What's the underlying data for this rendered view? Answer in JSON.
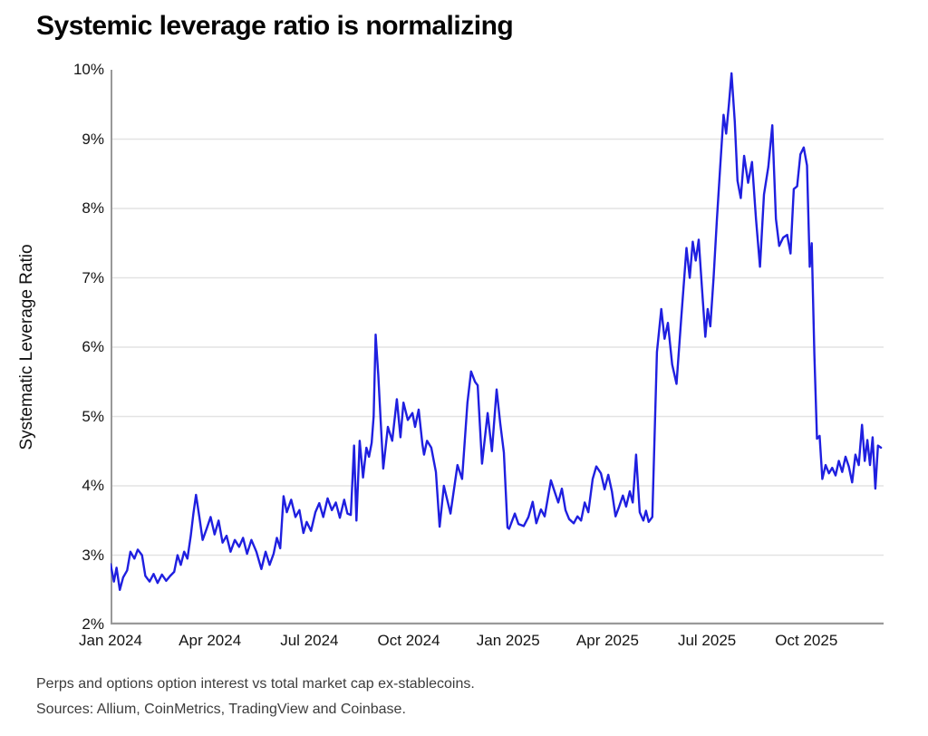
{
  "page": {
    "title": "Systemic leverage ratio is normalizing",
    "footnote": "Perps and options option interest vs total market cap ex-stablecoins.",
    "sources": "Sources: Allium, CoinMetrics, TradingView and Coinbase."
  },
  "colors": {
    "line": "#1f1fe0",
    "grid": "#e3e3e3",
    "axis": "#999999",
    "text": "#141414"
  },
  "chart_data": {
    "type": "line",
    "title": "Systemic leverage ratio is normalizing",
    "xlabel": "",
    "ylabel": "Systematic Leverage Ratio",
    "y_unit": "%",
    "ylim": [
      2,
      10
    ],
    "y_ticks": [
      {
        "value": 2,
        "label": "2%"
      },
      {
        "value": 3,
        "label": "3%"
      },
      {
        "value": 4,
        "label": "4%"
      },
      {
        "value": 5,
        "label": "5%"
      },
      {
        "value": 6,
        "label": "6%"
      },
      {
        "value": 7,
        "label": "7%"
      },
      {
        "value": 8,
        "label": "8%"
      },
      {
        "value": 9,
        "label": "9%"
      },
      {
        "value": 10,
        "label": "10%"
      }
    ],
    "x_axis": "months since Jan 2024",
    "xlim": [
      0,
      23.33
    ],
    "x_ticks": [
      {
        "month": 0,
        "label": "Jan 2024"
      },
      {
        "month": 3,
        "label": "Apr 2024"
      },
      {
        "month": 6,
        "label": "Jul 2024"
      },
      {
        "month": 9,
        "label": "Oct 2024"
      },
      {
        "month": 12,
        "label": "Jan 2025"
      },
      {
        "month": 15,
        "label": "Apr 2025"
      },
      {
        "month": 18,
        "label": "Jul 2025"
      },
      {
        "month": 21,
        "label": "Oct 2025"
      }
    ],
    "grid": "horizontal",
    "legend": "none",
    "series": [
      {
        "name": "Systematic Leverage Ratio",
        "points": [
          [
            0.0,
            2.87
          ],
          [
            0.1,
            2.62
          ],
          [
            0.18,
            2.82
          ],
          [
            0.28,
            2.5
          ],
          [
            0.38,
            2.68
          ],
          [
            0.5,
            2.78
          ],
          [
            0.6,
            3.05
          ],
          [
            0.72,
            2.95
          ],
          [
            0.82,
            3.08
          ],
          [
            0.95,
            3.0
          ],
          [
            1.05,
            2.7
          ],
          [
            1.18,
            2.62
          ],
          [
            1.3,
            2.73
          ],
          [
            1.42,
            2.6
          ],
          [
            1.55,
            2.72
          ],
          [
            1.68,
            2.63
          ],
          [
            1.8,
            2.7
          ],
          [
            1.92,
            2.76
          ],
          [
            2.02,
            3.0
          ],
          [
            2.12,
            2.86
          ],
          [
            2.22,
            3.05
          ],
          [
            2.32,
            2.95
          ],
          [
            2.42,
            3.28
          ],
          [
            2.5,
            3.6
          ],
          [
            2.58,
            3.87
          ],
          [
            2.68,
            3.55
          ],
          [
            2.78,
            3.22
          ],
          [
            2.9,
            3.38
          ],
          [
            3.02,
            3.55
          ],
          [
            3.14,
            3.3
          ],
          [
            3.26,
            3.5
          ],
          [
            3.38,
            3.18
          ],
          [
            3.5,
            3.28
          ],
          [
            3.62,
            3.05
          ],
          [
            3.75,
            3.22
          ],
          [
            3.88,
            3.12
          ],
          [
            4.0,
            3.25
          ],
          [
            4.12,
            3.02
          ],
          [
            4.25,
            3.22
          ],
          [
            4.4,
            3.05
          ],
          [
            4.55,
            2.8
          ],
          [
            4.68,
            3.05
          ],
          [
            4.8,
            2.86
          ],
          [
            4.92,
            3.02
          ],
          [
            5.02,
            3.25
          ],
          [
            5.12,
            3.1
          ],
          [
            5.22,
            3.85
          ],
          [
            5.32,
            3.62
          ],
          [
            5.45,
            3.8
          ],
          [
            5.58,
            3.55
          ],
          [
            5.7,
            3.65
          ],
          [
            5.82,
            3.32
          ],
          [
            5.92,
            3.48
          ],
          [
            6.05,
            3.35
          ],
          [
            6.18,
            3.62
          ],
          [
            6.3,
            3.75
          ],
          [
            6.42,
            3.55
          ],
          [
            6.55,
            3.82
          ],
          [
            6.68,
            3.65
          ],
          [
            6.8,
            3.76
          ],
          [
            6.92,
            3.54
          ],
          [
            7.05,
            3.8
          ],
          [
            7.15,
            3.6
          ],
          [
            7.25,
            3.58
          ],
          [
            7.35,
            4.58
          ],
          [
            7.42,
            3.5
          ],
          [
            7.52,
            4.65
          ],
          [
            7.62,
            4.12
          ],
          [
            7.72,
            4.55
          ],
          [
            7.8,
            4.42
          ],
          [
            7.88,
            4.62
          ],
          [
            7.94,
            5.0
          ],
          [
            8.0,
            6.18
          ],
          [
            8.08,
            5.6
          ],
          [
            8.15,
            4.95
          ],
          [
            8.23,
            4.25
          ],
          [
            8.37,
            4.85
          ],
          [
            8.5,
            4.65
          ],
          [
            8.64,
            5.25
          ],
          [
            8.75,
            4.7
          ],
          [
            8.84,
            5.2
          ],
          [
            8.97,
            4.95
          ],
          [
            9.11,
            5.05
          ],
          [
            9.19,
            4.85
          ],
          [
            9.3,
            5.1
          ],
          [
            9.41,
            4.6
          ],
          [
            9.46,
            4.45
          ],
          [
            9.55,
            4.65
          ],
          [
            9.68,
            4.55
          ],
          [
            9.82,
            4.2
          ],
          [
            9.93,
            3.41
          ],
          [
            10.06,
            4.0
          ],
          [
            10.26,
            3.6
          ],
          [
            10.47,
            4.3
          ],
          [
            10.61,
            4.1
          ],
          [
            10.77,
            5.2
          ],
          [
            10.88,
            5.65
          ],
          [
            11.0,
            5.5
          ],
          [
            11.08,
            5.45
          ],
          [
            11.21,
            4.32
          ],
          [
            11.38,
            5.05
          ],
          [
            11.51,
            4.5
          ],
          [
            11.65,
            5.39
          ],
          [
            11.76,
            4.9
          ],
          [
            11.87,
            4.48
          ],
          [
            11.98,
            3.4
          ],
          [
            12.03,
            3.38
          ],
          [
            12.2,
            3.6
          ],
          [
            12.31,
            3.45
          ],
          [
            12.47,
            3.42
          ],
          [
            12.61,
            3.55
          ],
          [
            12.74,
            3.77
          ],
          [
            12.85,
            3.46
          ],
          [
            12.99,
            3.66
          ],
          [
            13.1,
            3.56
          ],
          [
            13.29,
            4.08
          ],
          [
            13.4,
            3.92
          ],
          [
            13.51,
            3.76
          ],
          [
            13.62,
            3.96
          ],
          [
            13.73,
            3.65
          ],
          [
            13.84,
            3.52
          ],
          [
            13.98,
            3.46
          ],
          [
            14.09,
            3.56
          ],
          [
            14.2,
            3.5
          ],
          [
            14.31,
            3.76
          ],
          [
            14.42,
            3.62
          ],
          [
            14.55,
            4.1
          ],
          [
            14.66,
            4.28
          ],
          [
            14.8,
            4.18
          ],
          [
            14.91,
            3.95
          ],
          [
            15.02,
            4.16
          ],
          [
            15.13,
            3.92
          ],
          [
            15.24,
            3.56
          ],
          [
            15.35,
            3.7
          ],
          [
            15.46,
            3.86
          ],
          [
            15.56,
            3.7
          ],
          [
            15.67,
            3.92
          ],
          [
            15.76,
            3.76
          ],
          [
            15.86,
            4.45
          ],
          [
            15.97,
            3.62
          ],
          [
            16.08,
            3.5
          ],
          [
            16.16,
            3.64
          ],
          [
            16.24,
            3.48
          ],
          [
            16.35,
            3.55
          ],
          [
            16.49,
            5.93
          ],
          [
            16.62,
            6.55
          ],
          [
            16.72,
            6.12
          ],
          [
            16.82,
            6.35
          ],
          [
            16.95,
            5.75
          ],
          [
            17.08,
            5.47
          ],
          [
            17.22,
            6.4
          ],
          [
            17.38,
            7.43
          ],
          [
            17.48,
            7.0
          ],
          [
            17.57,
            7.52
          ],
          [
            17.66,
            7.25
          ],
          [
            17.75,
            7.55
          ],
          [
            17.85,
            6.85
          ],
          [
            17.95,
            6.15
          ],
          [
            18.02,
            6.55
          ],
          [
            18.1,
            6.3
          ],
          [
            18.2,
            7.0
          ],
          [
            18.3,
            7.85
          ],
          [
            18.4,
            8.6
          ],
          [
            18.5,
            9.35
          ],
          [
            18.58,
            9.08
          ],
          [
            18.66,
            9.5
          ],
          [
            18.74,
            9.95
          ],
          [
            18.84,
            9.25
          ],
          [
            18.92,
            8.4
          ],
          [
            19.02,
            8.15
          ],
          [
            19.12,
            8.76
          ],
          [
            19.24,
            8.37
          ],
          [
            19.36,
            8.67
          ],
          [
            19.48,
            7.85
          ],
          [
            19.6,
            7.16
          ],
          [
            19.72,
            8.2
          ],
          [
            19.85,
            8.6
          ],
          [
            19.97,
            9.2
          ],
          [
            20.08,
            7.85
          ],
          [
            20.18,
            7.46
          ],
          [
            20.3,
            7.58
          ],
          [
            20.42,
            7.62
          ],
          [
            20.52,
            7.35
          ],
          [
            20.62,
            8.28
          ],
          [
            20.72,
            8.32
          ],
          [
            20.82,
            8.78
          ],
          [
            20.92,
            8.88
          ],
          [
            21.02,
            8.62
          ],
          [
            21.1,
            7.16
          ],
          [
            21.16,
            7.5
          ],
          [
            21.24,
            5.9
          ],
          [
            21.32,
            4.68
          ],
          [
            21.4,
            4.72
          ],
          [
            21.48,
            4.1
          ],
          [
            21.58,
            4.3
          ],
          [
            21.68,
            4.18
          ],
          [
            21.78,
            4.26
          ],
          [
            21.88,
            4.15
          ],
          [
            21.98,
            4.36
          ],
          [
            22.08,
            4.2
          ],
          [
            22.18,
            4.42
          ],
          [
            22.28,
            4.28
          ],
          [
            22.38,
            4.05
          ],
          [
            22.48,
            4.45
          ],
          [
            22.58,
            4.3
          ],
          [
            22.68,
            4.88
          ],
          [
            22.76,
            4.36
          ],
          [
            22.84,
            4.66
          ],
          [
            22.92,
            4.3
          ],
          [
            23.0,
            4.7
          ],
          [
            23.08,
            3.96
          ],
          [
            23.16,
            4.58
          ],
          [
            23.25,
            4.55
          ]
        ]
      }
    ]
  }
}
